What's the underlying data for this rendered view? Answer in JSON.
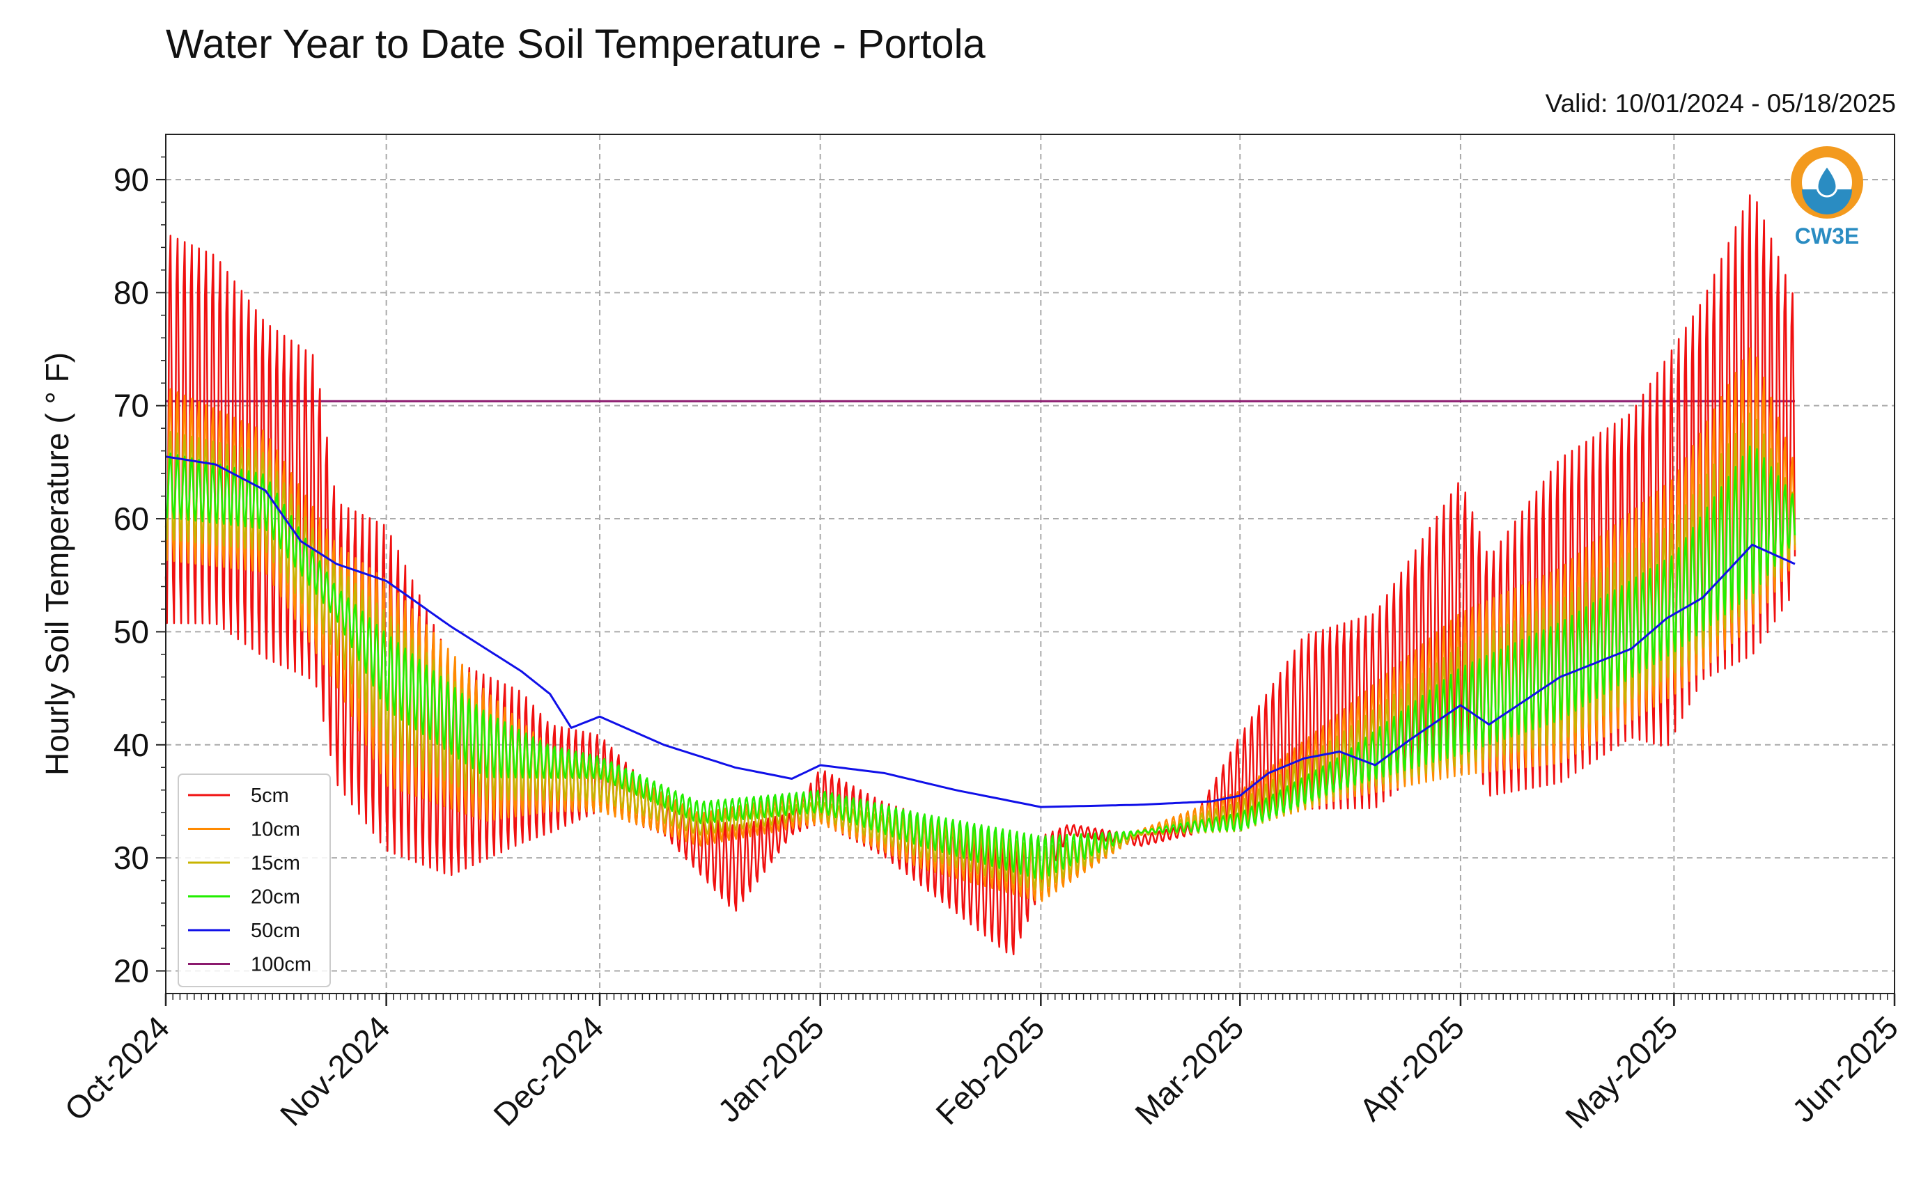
{
  "title": "Water Year to Date Soil Temperature - Portola",
  "valid_text": "Valid: 10/01/2024 - 05/18/2025",
  "logo": {
    "text": "CW3E",
    "icon": "water-drop-logo-icon",
    "ring_color": "#F39A1E",
    "text_color": "#2A8CC2"
  },
  "chart_data": {
    "type": "line",
    "ylabel": "Hourly Soil Temperature ( ° F)",
    "xlabel": "",
    "ylim": [
      18,
      94
    ],
    "yticks": [
      20,
      30,
      40,
      50,
      60,
      70,
      80,
      90
    ],
    "xlim": [
      "2024-10-01",
      "2025-06-01"
    ],
    "xticks": [
      {
        "date": "2024-10-01",
        "label": "Oct-2024"
      },
      {
        "date": "2024-11-01",
        "label": "Nov-2024"
      },
      {
        "date": "2024-12-01",
        "label": "Dec-2024"
      },
      {
        "date": "2025-01-01",
        "label": "Jan-2025"
      },
      {
        "date": "2025-02-01",
        "label": "Feb-2025"
      },
      {
        "date": "2025-03-01",
        "label": "Mar-2025"
      },
      {
        "date": "2025-04-01",
        "label": "Apr-2025"
      },
      {
        "date": "2025-05-01",
        "label": "May-2025"
      },
      {
        "date": "2025-06-01",
        "label": "Jun-2025"
      }
    ],
    "grid": true,
    "legend_position": "lower-left",
    "series": [
      {
        "name": "5cm",
        "color": "#F01010",
        "x": [
          "2024-10-01",
          "2024-10-08",
          "2024-10-15",
          "2024-10-22",
          "2024-10-25",
          "2024-11-01",
          "2024-11-10",
          "2024-11-20",
          "2024-11-24",
          "2024-12-01",
          "2024-12-10",
          "2024-12-20",
          "2024-12-28",
          "2025-01-01",
          "2025-01-10",
          "2025-01-20",
          "2025-01-28",
          "2025-02-01",
          "2025-02-05",
          "2025-02-15",
          "2025-02-22",
          "2025-03-01",
          "2025-03-10",
          "2025-03-20",
          "2025-04-01",
          "2025-04-05",
          "2025-04-15",
          "2025-04-25",
          "2025-04-30",
          "2025-05-05",
          "2025-05-12",
          "2025-05-18"
        ],
        "max": [
          86,
          84,
          78,
          75,
          62,
          60,
          48,
          45,
          42,
          41,
          35,
          33,
          34,
          38,
          35,
          33,
          31,
          32,
          33,
          32,
          33,
          41,
          50,
          52,
          64,
          57,
          66,
          70,
          75,
          80,
          90,
          80
        ],
        "min": [
          50,
          50,
          47,
          45,
          36,
          30,
          28,
          31,
          32,
          34,
          32,
          25,
          32,
          33,
          30,
          25,
          21,
          27,
          32,
          31,
          32,
          33,
          34,
          34,
          40,
          35,
          36,
          40,
          39,
          45,
          47,
          53
        ]
      },
      {
        "name": "10cm",
        "color": "#FF8A00",
        "x": [
          "2024-10-01",
          "2024-10-15",
          "2024-10-25",
          "2024-11-01",
          "2024-11-15",
          "2024-11-24",
          "2024-12-01",
          "2024-12-15",
          "2025-01-01",
          "2025-01-15",
          "2025-02-01",
          "2025-02-15",
          "2025-03-01",
          "2025-03-15",
          "2025-04-01",
          "2025-04-15",
          "2025-05-01",
          "2025-05-12",
          "2025-05-18"
        ],
        "max": [
          72,
          68,
          58,
          55,
          45,
          40,
          39,
          34,
          36,
          34,
          31,
          32.5,
          36,
          43,
          52,
          56,
          64,
          76,
          65
        ],
        "min": [
          56,
          55,
          45,
          36,
          33,
          34,
          34,
          31,
          33,
          29,
          26,
          32,
          32.5,
          35,
          37,
          38,
          44,
          50,
          56
        ]
      },
      {
        "name": "15cm",
        "color": "#C8B400",
        "x": [
          "2024-10-01",
          "2024-10-15",
          "2024-10-25",
          "2024-11-01",
          "2024-11-15",
          "2024-11-24",
          "2024-12-01",
          "2024-12-15",
          "2025-01-01",
          "2025-01-15",
          "2025-02-01",
          "2025-02-15",
          "2025-03-01",
          "2025-03-15",
          "2025-04-01",
          "2025-04-15",
          "2025-05-01",
          "2025-05-12",
          "2025-05-18"
        ],
        "max": [
          68,
          66,
          56,
          52,
          43,
          40,
          38,
          33.5,
          35,
          33,
          31,
          32.3,
          35,
          41,
          49,
          53,
          60,
          70,
          62
        ],
        "min": [
          58,
          57,
          48,
          39,
          35,
          35,
          35,
          32,
          33.5,
          30,
          27,
          32,
          32.3,
          35.5,
          38,
          40,
          46,
          52,
          57
        ]
      },
      {
        "name": "20cm",
        "color": "#22EE00",
        "x": [
          "2024-10-01",
          "2024-10-15",
          "2024-10-25",
          "2024-11-01",
          "2024-11-15",
          "2024-11-24",
          "2024-12-01",
          "2024-12-15",
          "2025-01-01",
          "2025-01-15",
          "2025-02-01",
          "2025-02-15",
          "2025-03-01",
          "2025-03-15",
          "2025-04-01",
          "2025-04-15",
          "2025-05-01",
          "2025-05-12",
          "2025-05-18"
        ],
        "max": [
          66,
          64,
          54,
          50,
          43,
          40,
          39,
          35,
          36,
          34,
          32,
          32.4,
          34,
          39,
          47,
          51,
          57,
          67,
          62
        ],
        "min": [
          60,
          59,
          51,
          43,
          37,
          37,
          37,
          33,
          34,
          31,
          28,
          32.2,
          32.4,
          36,
          39,
          42,
          48,
          53,
          58
        ]
      },
      {
        "name": "50cm",
        "color": "#1010E8",
        "x": [
          "2024-10-01",
          "2024-10-08",
          "2024-10-15",
          "2024-10-20",
          "2024-10-25",
          "2024-11-01",
          "2024-11-10",
          "2024-11-20",
          "2024-11-24",
          "2024-11-27",
          "2024-12-01",
          "2024-12-10",
          "2024-12-20",
          "2024-12-28",
          "2025-01-01",
          "2025-01-10",
          "2025-01-20",
          "2025-02-01",
          "2025-02-15",
          "2025-02-25",
          "2025-03-01",
          "2025-03-05",
          "2025-03-10",
          "2025-03-15",
          "2025-03-20",
          "2025-03-25",
          "2025-04-01",
          "2025-04-05",
          "2025-04-15",
          "2025-04-25",
          "2025-04-30",
          "2025-05-05",
          "2025-05-12",
          "2025-05-18"
        ],
        "y": [
          65.5,
          64.8,
          62.5,
          58,
          56,
          54.5,
          50.5,
          46.5,
          44.5,
          41.5,
          42.5,
          40,
          38,
          37,
          38.2,
          37.5,
          36,
          34.5,
          34.7,
          35,
          35.5,
          37.5,
          38.8,
          39.4,
          38.2,
          40.5,
          43.5,
          41.8,
          46,
          48.5,
          51.2,
          53,
          57.7,
          56
        ]
      },
      {
        "name": "100cm",
        "color": "#8B1A6E",
        "x": [
          "2024-10-01",
          "2025-05-18"
        ],
        "y": [
          70.4,
          70.4
        ]
      }
    ]
  }
}
